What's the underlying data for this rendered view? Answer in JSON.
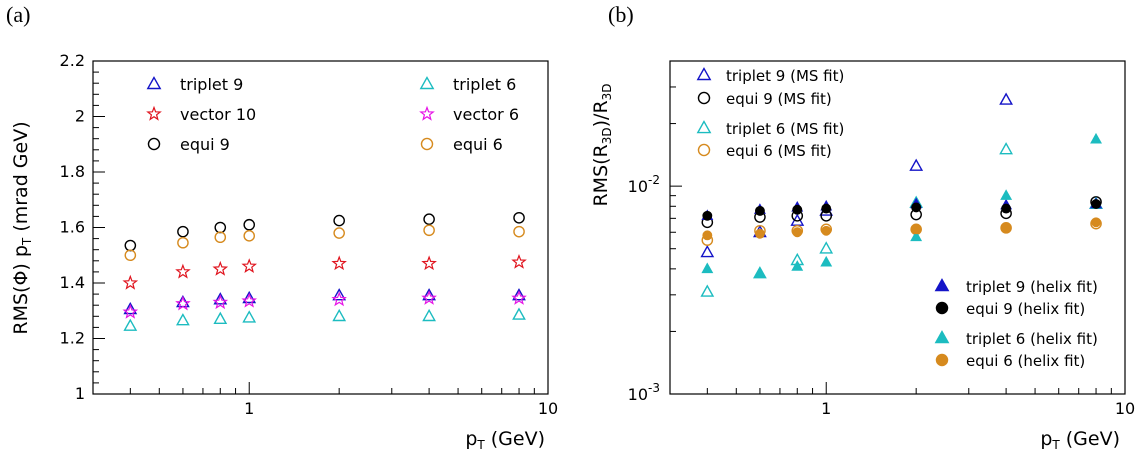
{
  "chart_data": [
    {
      "panel_label": "(a)",
      "type": "scatter",
      "x_scale": "log",
      "xlim": [
        0.3,
        10
      ],
      "ylim": [
        1.0,
        2.2
      ],
      "xlabel": "p_T (GeV)",
      "ylabel": "RMS(Φ) p_T (mrad GeV)",
      "x_tick_labels": [
        "1",
        "10"
      ],
      "y_tick_labels": [
        "1",
        "1.2",
        "1.4",
        "1.6",
        "1.8",
        "2",
        "2.2"
      ],
      "y_ticks": [
        1.0,
        1.2,
        1.4,
        1.6,
        1.8,
        2.0,
        2.2
      ],
      "grid": false,
      "legend_layout": "two columns, top",
      "series": [
        {
          "name": "triplet 9",
          "marker": "triangle-open",
          "color": "#1414c8",
          "x": [
            0.4,
            0.6,
            0.8,
            1.0,
            2.0,
            4.0,
            8.0
          ],
          "y": [
            1.305,
            1.33,
            1.34,
            1.345,
            1.355,
            1.355,
            1.355
          ]
        },
        {
          "name": "vector 10",
          "marker": "star-open",
          "color": "#e0141e",
          "x": [
            0.4,
            0.6,
            0.8,
            1.0,
            2.0,
            4.0,
            8.0
          ],
          "y": [
            1.4,
            1.44,
            1.45,
            1.46,
            1.47,
            1.47,
            1.475
          ]
        },
        {
          "name": "equi 9",
          "marker": "circle-open",
          "color": "#000000",
          "x": [
            0.4,
            0.6,
            0.8,
            1.0,
            2.0,
            4.0,
            8.0
          ],
          "y": [
            1.535,
            1.585,
            1.6,
            1.61,
            1.625,
            1.63,
            1.635
          ]
        },
        {
          "name": "triplet 6",
          "marker": "triangle-open",
          "color": "#1cbcc0",
          "x": [
            0.4,
            0.6,
            0.8,
            1.0,
            2.0,
            4.0,
            8.0
          ],
          "y": [
            1.245,
            1.265,
            1.27,
            1.275,
            1.28,
            1.28,
            1.285
          ]
        },
        {
          "name": "vector 6",
          "marker": "star-open",
          "color": "#e614e6",
          "x": [
            0.4,
            0.6,
            0.8,
            1.0,
            2.0,
            4.0,
            8.0
          ],
          "y": [
            1.295,
            1.325,
            1.33,
            1.335,
            1.34,
            1.345,
            1.345
          ]
        },
        {
          "name": "equi 6",
          "marker": "circle-open",
          "color": "#d68a1e",
          "x": [
            0.4,
            0.6,
            0.8,
            1.0,
            2.0,
            4.0,
            8.0
          ],
          "y": [
            1.5,
            1.545,
            1.565,
            1.57,
            1.58,
            1.59,
            1.585
          ]
        }
      ]
    },
    {
      "panel_label": "(b)",
      "type": "scatter",
      "x_scale": "log",
      "y_scale": "log",
      "xlim": [
        0.3,
        10
      ],
      "ylim": [
        0.001,
        0.04
      ],
      "xlabel": "p_T (GeV)",
      "ylabel": "RMS(R_3D)/R_3D",
      "x_tick_labels": [
        "1",
        "10"
      ],
      "y_tick_labels": [
        "10^-3",
        "10^-2"
      ],
      "y_ticks": [
        0.001,
        0.01
      ],
      "grid": false,
      "legend_layout": "ms-fit entries top-left, helix-fit entries bottom-right",
      "series": [
        {
          "name": "triplet 9 (MS fit)",
          "marker": "triangle-open",
          "color": "#1414c8",
          "x": [
            0.4,
            0.6,
            0.8,
            1.0,
            2.0,
            4.0,
            8.0
          ],
          "y": [
            0.0048,
            0.006,
            0.0068,
            0.0076,
            0.0125,
            0.026,
            0.0082
          ]
        },
        {
          "name": "equi 9 (MS fit)",
          "marker": "circle-open",
          "color": "#000000",
          "x": [
            0.4,
            0.6,
            0.8,
            1.0,
            2.0,
            4.0,
            8.0
          ],
          "y": [
            0.0067,
            0.0071,
            0.0072,
            0.0072,
            0.0073,
            0.0074,
            0.0084
          ]
        },
        {
          "name": "triplet 6 (MS fit)",
          "marker": "triangle-open",
          "color": "#1cbcc0",
          "x": [
            0.4,
            0.6,
            0.8,
            1.0,
            2.0,
            4.0,
            8.0
          ],
          "y": [
            0.0031,
            0.0038,
            0.0044,
            0.005,
            0.0083,
            0.015,
            0.0082
          ]
        },
        {
          "name": "equi 6 (MS fit)",
          "marker": "circle-open",
          "color": "#d68a1e",
          "x": [
            0.4,
            0.6,
            0.8,
            1.0,
            2.0,
            4.0,
            8.0
          ],
          "y": [
            0.0055,
            0.0061,
            0.0061,
            0.0062,
            0.0062,
            0.0063,
            0.0066
          ]
        },
        {
          "name": "triplet 9 (helix fit)",
          "marker": "triangle-filled",
          "color": "#1414c8",
          "x": [
            0.4,
            0.6,
            0.8,
            1.0,
            2.0,
            4.0,
            8.0
          ],
          "y": [
            0.0072,
            0.0077,
            0.0079,
            0.008,
            0.0082,
            0.0081,
            0.0082
          ]
        },
        {
          "name": "equi 9 (helix fit)",
          "marker": "circle-filled",
          "color": "#000000",
          "x": [
            0.4,
            0.6,
            0.8,
            1.0,
            2.0,
            4.0,
            8.0
          ],
          "y": [
            0.0072,
            0.0076,
            0.0077,
            0.0078,
            0.0079,
            0.0078,
            0.0082
          ]
        },
        {
          "name": "triplet 6 (helix fit)",
          "marker": "triangle-filled",
          "color": "#1cbcc0",
          "x": [
            0.4,
            0.6,
            0.8,
            1.0,
            2.0,
            4.0,
            8.0
          ],
          "y": [
            0.004,
            0.0038,
            0.0041,
            0.0043,
            0.0057,
            0.009,
            0.0168
          ]
        },
        {
          "name": "equi 6 (helix fit)",
          "marker": "circle-filled",
          "color": "#d68a1e",
          "x": [
            0.4,
            0.6,
            0.8,
            1.0,
            2.0,
            4.0,
            8.0
          ],
          "y": [
            0.0058,
            0.0059,
            0.006,
            0.0061,
            0.0062,
            0.0063,
            0.0067
          ]
        }
      ]
    }
  ]
}
